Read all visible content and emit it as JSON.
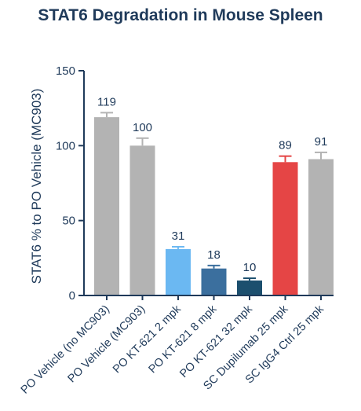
{
  "chart_data": {
    "type": "bar",
    "title": "STAT6 Degradation in Mouse Spleen",
    "xlabel": "",
    "ylabel": "STAT6 % to PO Vehicle (MC903)",
    "ylim": [
      0,
      150
    ],
    "yticks": [
      0,
      50,
      100,
      150
    ],
    "grid": false,
    "error_bars": true,
    "categories": [
      "PO Vehicle (no MC903)",
      "PO Vehicle (MC903)",
      "PO KT-621 2 mpk",
      "PO KT-621 8 mpk",
      "PO KT-621 32 mpk",
      "SC Dupilumab 25 mpk",
      "SC IgG4 Ctrl 25 mpk"
    ],
    "values": [
      119,
      100,
      31,
      18,
      10,
      89,
      91
    ],
    "value_labels": [
      "119",
      "100",
      "31",
      "18",
      "10",
      "89",
      "91"
    ],
    "errors": [
      3,
      5,
      1.5,
      2,
      1.5,
      4,
      4.5
    ],
    "colors": [
      "#b3b3b3",
      "#b3b3b3",
      "#6bb8f2",
      "#3b6f9e",
      "#1c4f6e",
      "#e54545",
      "#b3b3b3"
    ]
  }
}
